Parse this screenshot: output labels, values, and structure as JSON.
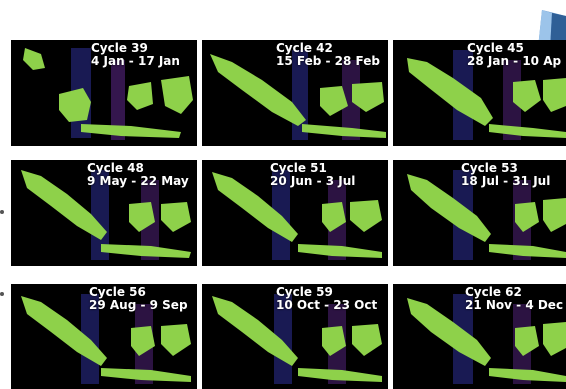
{
  "panels": [
    {
      "cycle": "Cycle 39",
      "dates": "4 Jan - 17 Jan"
    },
    {
      "cycle": "Cycle 42",
      "dates": "15 Feb - 28 Feb"
    },
    {
      "cycle": "Cycle 45",
      "dates": "28 Jan - 10 Ap"
    },
    {
      "cycle": "Cycle 48",
      "dates": "9 May - 22 May"
    },
    {
      "cycle": "Cycle 51",
      "dates": "20 Jun - 3 Jul"
    },
    {
      "cycle": "Cycle 53",
      "dates": "18 Jul - 31 Jul"
    },
    {
      "cycle": "Cycle 56",
      "dates": "29 Aug - 9 Sep"
    },
    {
      "cycle": "Cycle 59",
      "dates": "10 Oct - 23 Oct"
    },
    {
      "cycle": "Cycle 62",
      "dates": "21 Nov - 4 Dec"
    }
  ],
  "colors": {
    "land": "#8ed14a",
    "land_dark": "#5f9a2e",
    "background": "#000000",
    "swath_blue": "#2a2c8a",
    "swath_purple": "#4a1f6e"
  }
}
